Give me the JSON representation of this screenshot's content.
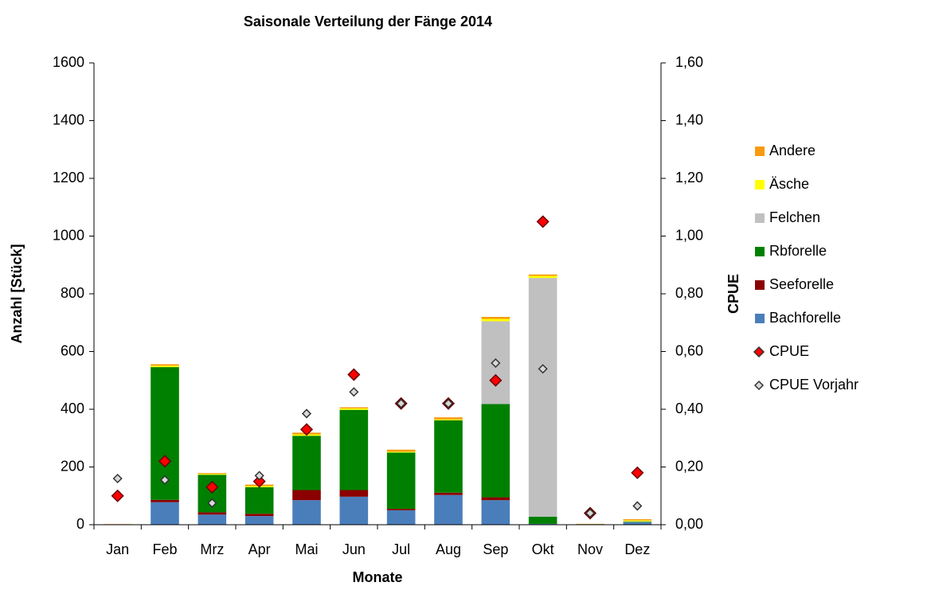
{
  "chart_data": {
    "type": "bar",
    "stacked": true,
    "title": "Saisonale Verteilung der Fänge 2014",
    "x_label": "Monate",
    "y_label": "Anzahl [Stück]",
    "y2_label": "CPUE",
    "categories": [
      "Jan",
      "Feb",
      "Mrz",
      "Apr",
      "Mai",
      "Jun",
      "Jul",
      "Aug",
      "Sep",
      "Okt",
      "Nov",
      "Dez"
    ],
    "series": [
      {
        "name": "Bachforelle",
        "color": "#4a7ebb",
        "values": [
          0,
          78,
          35,
          30,
          85,
          97,
          50,
          103,
          85,
          3,
          1,
          8
        ]
      },
      {
        "name": "Seeforelle",
        "color": "#8b0000",
        "values": [
          0,
          8,
          8,
          8,
          35,
          23,
          5,
          8,
          10,
          0,
          0,
          0
        ]
      },
      {
        "name": "Rbforelle",
        "color": "#008000",
        "values": [
          1,
          460,
          130,
          92,
          188,
          278,
          195,
          251,
          323,
          25,
          1,
          2
        ]
      },
      {
        "name": "Felchen",
        "color": "#c0c0c0",
        "values": [
          0,
          0,
          0,
          0,
          0,
          0,
          0,
          0,
          287,
          827,
          0,
          2
        ]
      },
      {
        "name": "Äsche",
        "color": "#ffff00",
        "values": [
          0,
          5,
          3,
          4,
          5,
          5,
          3,
          3,
          8,
          7,
          0,
          3
        ]
      },
      {
        "name": "Andere",
        "color": "#f79a0f",
        "values": [
          1,
          5,
          3,
          5,
          6,
          4,
          7,
          7,
          7,
          5,
          1,
          4
        ]
      },
      {
        "name": "CPUE",
        "type": "scatter",
        "axis": "y2",
        "color": "#ff0000",
        "values": [
          0.1,
          0.22,
          0.13,
          0.15,
          0.33,
          0.52,
          0.42,
          0.42,
          0.5,
          1.05,
          0.04,
          0.18
        ]
      },
      {
        "name": "CPUE Vorjahr",
        "type": "scatter",
        "axis": "y2",
        "color": "#d9d9d9",
        "values": [
          0.16,
          0.155,
          0.075,
          0.17,
          0.385,
          0.46,
          0.42,
          0.42,
          0.56,
          0.54,
          0.04,
          0.065
        ]
      }
    ],
    "ylim": [
      0,
      1600
    ],
    "yticks": [
      0,
      200,
      400,
      600,
      800,
      1000,
      1200,
      1400,
      1600
    ],
    "y2lim": [
      0,
      1.6
    ],
    "y2ticks": [
      {
        "value": 0,
        "label": "0,00"
      },
      {
        "value": 0.2,
        "label": "0,20"
      },
      {
        "value": 0.4,
        "label": "0,40"
      },
      {
        "value": 0.6,
        "label": "0,60"
      },
      {
        "value": 0.8,
        "label": "0,80"
      },
      {
        "value": 1.0,
        "label": "1,00"
      },
      {
        "value": 1.2,
        "label": "1,20"
      },
      {
        "value": 1.4,
        "label": "1,40"
      },
      {
        "value": 1.6,
        "label": "1,60"
      }
    ],
    "grid": false,
    "legend": "right"
  }
}
